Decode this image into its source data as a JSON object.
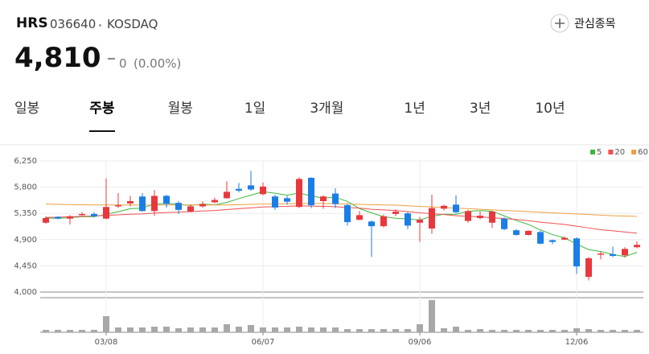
{
  "header": {
    "name": "HRS",
    "code": "036640",
    "market": "KOSDAQ",
    "price": "4,810",
    "change": "0",
    "change_rate": "(0.00%)",
    "watch_button": "관심종목"
  },
  "tabs": {
    "items": [
      "일봉",
      "주봉",
      "월봉",
      "1일",
      "3개월",
      "1년",
      "3년",
      "10년"
    ],
    "selected": 1
  },
  "chart_data": {
    "type": "candlestick",
    "categories": [
      null,
      null,
      null,
      null,
      null,
      "03/08",
      null,
      null,
      null,
      null,
      null,
      null,
      null,
      null,
      null,
      null,
      null,
      null,
      "06/07",
      null,
      null,
      null,
      null,
      null,
      null,
      null,
      null,
      null,
      null,
      null,
      null,
      "09/06",
      null,
      null,
      null,
      null,
      null,
      null,
      null,
      null,
      null,
      null,
      null,
      null,
      "12/06",
      null,
      null,
      null,
      null,
      null
    ],
    "open": [
      5190,
      5290,
      5260,
      5320,
      5340,
      5260,
      5470,
      5520,
      5640,
      5390,
      5650,
      5530,
      5380,
      5470,
      5540,
      5610,
      5770,
      5830,
      5680,
      5640,
      5610,
      5460,
      5960,
      5560,
      5690,
      5490,
      5240,
      5210,
      5130,
      5340,
      5350,
      5190,
      5090,
      5430,
      5500,
      5220,
      5270,
      5190,
      5260,
      5060,
      4980,
      5030,
      4890,
      4900,
      4920,
      4260,
      4640,
      4650,
      4630,
      4770
    ],
    "high": [
      5300,
      5300,
      5320,
      5370,
      5370,
      5950,
      5700,
      5650,
      5700,
      5750,
      5670,
      5560,
      5500,
      5560,
      5620,
      5900,
      5870,
      6080,
      5880,
      5670,
      5650,
      5970,
      5970,
      5660,
      5780,
      5520,
      5390,
      5230,
      5330,
      5420,
      5370,
      5290,
      5670,
      5500,
      5660,
      5410,
      5380,
      5390,
      5280,
      5080,
      5060,
      5050,
      4900,
      4950,
      4940,
      4600,
      4700,
      4780,
      4770,
      4870
    ],
    "low": [
      5170,
      5250,
      5160,
      5310,
      5280,
      5250,
      5440,
      5470,
      5380,
      5310,
      5450,
      5340,
      5370,
      5450,
      5520,
      5600,
      5710,
      5740,
      5660,
      5410,
      5500,
      5440,
      5440,
      5430,
      5440,
      5140,
      5230,
      4600,
      5110,
      5300,
      5080,
      4860,
      5000,
      5400,
      5350,
      5190,
      5250,
      5100,
      5060,
      4970,
      4970,
      4820,
      4820,
      4890,
      4310,
      4200,
      4560,
      4600,
      4590,
      4750
    ],
    "close": [
      5270,
      5260,
      5300,
      5340,
      5300,
      5460,
      5490,
      5560,
      5390,
      5650,
      5510,
      5410,
      5470,
      5510,
      5580,
      5720,
      5740,
      5760,
      5810,
      5450,
      5550,
      5940,
      5490,
      5640,
      5510,
      5200,
      5320,
      5130,
      5300,
      5380,
      5140,
      5240,
      5440,
      5480,
      5370,
      5390,
      5310,
      5380,
      5080,
      4980,
      5050,
      4830,
      4860,
      4930,
      4440,
      4580,
      4660,
      4620,
      4740,
      4810
    ],
    "up_color": "#e8383d",
    "down_color": "#1a7ee6",
    "ylim": [
      4000,
      6250
    ],
    "yticks": [
      {
        "value": 4000,
        "label": "4,000"
      },
      {
        "value": 4450,
        "label": "4,450"
      },
      {
        "value": 4900,
        "label": "4,900"
      },
      {
        "value": 5350,
        "label": "5,350"
      },
      {
        "value": 5800,
        "label": "5,800"
      },
      {
        "value": 6250,
        "label": "6,250"
      }
    ],
    "grid": true,
    "moving_averages": [
      {
        "name": "5",
        "color": "#3cb93c",
        "values": [
          5270,
          5265,
          5277,
          5293,
          5294,
          5332,
          5378,
          5430,
          5440,
          5510,
          5520,
          5504,
          5486,
          5510,
          5496,
          5538,
          5604,
          5662,
          5722,
          5696,
          5662,
          5700,
          5648,
          5614,
          5626,
          5556,
          5432,
          5360,
          5292,
          5266,
          5254,
          5238,
          5300,
          5336,
          5334,
          5384,
          5398,
          5386,
          5306,
          5228,
          5160,
          5066,
          4986,
          4930,
          4822,
          4728,
          4696,
          4646,
          4610,
          4682
        ]
      },
      {
        "name": "20",
        "color": "#f05050",
        "values": [
          5280,
          5285,
          5290,
          5300,
          5305,
          5315,
          5325,
          5335,
          5340,
          5355,
          5365,
          5370,
          5380,
          5390,
          5400,
          5415,
          5430,
          5445,
          5460,
          5465,
          5470,
          5480,
          5475,
          5470,
          5465,
          5450,
          5440,
          5420,
          5410,
          5400,
          5380,
          5360,
          5345,
          5330,
          5310,
          5300,
          5290,
          5275,
          5260,
          5245,
          5225,
          5200,
          5180,
          5160,
          5130,
          5100,
          5070,
          5050,
          5030,
          5010
        ]
      },
      {
        "name": "60",
        "color": "#eba040",
        "values": [
          5510,
          5505,
          5500,
          5498,
          5495,
          5495,
          5495,
          5495,
          5495,
          5495,
          5495,
          5495,
          5495,
          5495,
          5495,
          5495,
          5500,
          5505,
          5510,
          5510,
          5515,
          5520,
          5520,
          5520,
          5515,
          5510,
          5505,
          5500,
          5495,
          5490,
          5480,
          5470,
          5460,
          5450,
          5440,
          5430,
          5420,
          5410,
          5400,
          5390,
          5380,
          5370,
          5360,
          5350,
          5340,
          5330,
          5320,
          5310,
          5305,
          5300
        ]
      }
    ],
    "volume": {
      "color": "#a8a8a8",
      "values": [
        3,
        3,
        3,
        3,
        3,
        20,
        6,
        6,
        6,
        7,
        7,
        5,
        6,
        6,
        6,
        10,
        7,
        9,
        6,
        6,
        6,
        7,
        6,
        6,
        6,
        4,
        4,
        4,
        4,
        4,
        4,
        10,
        40,
        5,
        7,
        3,
        4,
        3,
        3,
        3,
        3,
        3,
        3,
        3,
        5,
        4,
        3,
        3,
        3,
        3
      ]
    }
  }
}
